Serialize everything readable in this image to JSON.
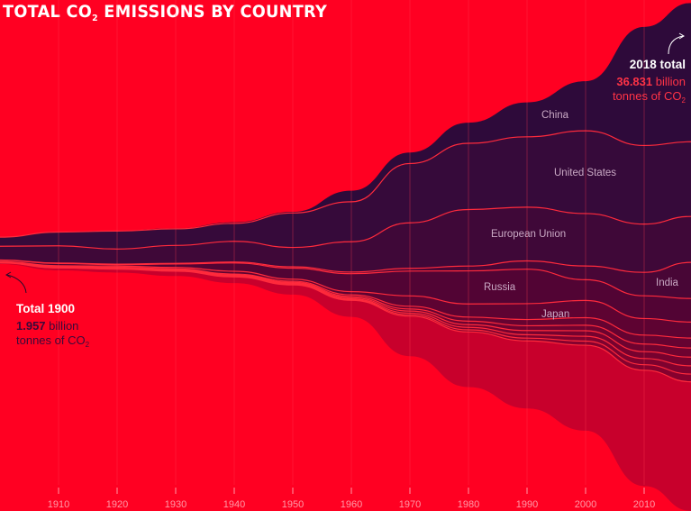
{
  "title": {
    "prefix": "TOTAL CO",
    "sub": "2",
    "suffix": " EMISSIONS BY COUNTRY"
  },
  "annotations": {
    "end": {
      "heading": "2018 total",
      "value": "36.831",
      "unit": "billion",
      "line2": "tonnes of CO",
      "sub": "2"
    },
    "start": {
      "heading": "Total 1900",
      "value": "1.957",
      "unit": "billion",
      "line2": "tonnes of CO",
      "sub": "2"
    }
  },
  "colors": {
    "background": "#ff0022",
    "divider": "#ff2a3c",
    "rest": "#c8002c",
    "china": "#2e0a3a",
    "label": "#c9a9c4",
    "tick": "#ff9aa8"
  },
  "chart_data": {
    "type": "area",
    "subtype": "streamgraph",
    "unit": "billion tonnes of CO2",
    "x": [
      1900,
      1910,
      1920,
      1930,
      1940,
      1950,
      1960,
      1970,
      1980,
      1990,
      2000,
      2010,
      2018
    ],
    "xticks": [
      1910,
      1920,
      1930,
      1940,
      1950,
      1960,
      1970,
      1980,
      1990,
      2000,
      2010
    ],
    "xlim": [
      1900,
      2018
    ],
    "grid": "vertical",
    "series": [
      {
        "name": "China",
        "color": "#2e0a3a",
        "values": [
          0.01,
          0.02,
          0.03,
          0.04,
          0.08,
          0.08,
          0.8,
          0.8,
          1.5,
          2.5,
          3.6,
          8.6,
          10.06
        ]
      },
      {
        "name": "United States",
        "color": "#360a3a",
        "values": [
          0.66,
          1.0,
          1.3,
          1.2,
          1.3,
          2.5,
          2.9,
          4.3,
          4.8,
          5.1,
          6.0,
          5.7,
          5.42
        ]
      },
      {
        "name": "European Union",
        "color": "#3f0838",
        "values": [
          1.0,
          1.25,
          1.1,
          1.3,
          1.5,
          1.4,
          2.2,
          3.3,
          4.1,
          3.9,
          3.8,
          3.5,
          3.33
        ]
      },
      {
        "name": "India",
        "color": "#480636",
        "values": [
          0.01,
          0.03,
          0.04,
          0.05,
          0.07,
          0.1,
          0.12,
          0.2,
          0.35,
          0.6,
          1.0,
          1.7,
          2.62
        ]
      },
      {
        "name": "Russia",
        "color": "#520434",
        "values": [
          0.1,
          0.16,
          0.1,
          0.25,
          0.6,
          0.8,
          1.3,
          1.8,
          2.4,
          2.5,
          1.5,
          1.65,
          1.71
        ]
      },
      {
        "name": "Japan",
        "color": "#5e0332",
        "values": [
          0.03,
          0.05,
          0.08,
          0.1,
          0.2,
          0.15,
          0.23,
          0.75,
          0.95,
          1.15,
          1.25,
          1.2,
          1.16
        ]
      },
      {
        "color": "#660331",
        "values": [
          0.02,
          0.03,
          0.04,
          0.05,
          0.06,
          0.08,
          0.12,
          0.2,
          0.3,
          0.45,
          0.55,
          0.65,
          0.72
        ]
      },
      {
        "color": "#6e0330",
        "values": [
          0.02,
          0.03,
          0.03,
          0.04,
          0.05,
          0.06,
          0.09,
          0.15,
          0.25,
          0.35,
          0.4,
          0.55,
          0.66
        ]
      },
      {
        "color": "#76022f",
        "values": [
          0.01,
          0.02,
          0.03,
          0.03,
          0.04,
          0.05,
          0.08,
          0.15,
          0.2,
          0.3,
          0.4,
          0.5,
          0.63
        ]
      },
      {
        "color": "#7e022f",
        "values": [
          0.01,
          0.02,
          0.02,
          0.03,
          0.03,
          0.04,
          0.06,
          0.12,
          0.18,
          0.25,
          0.35,
          0.45,
          0.6
        ]
      },
      {
        "color": "#86012e",
        "values": [
          0.01,
          0.01,
          0.02,
          0.02,
          0.03,
          0.04,
          0.05,
          0.1,
          0.15,
          0.2,
          0.3,
          0.4,
          0.56
        ]
      },
      {
        "color": "#c8002c",
        "values": [
          0.085,
          0.18,
          0.25,
          0.35,
          0.45,
          0.7,
          1.2,
          2.9,
          4.0,
          4.9,
          6.2,
          8.4,
          9.36
        ]
      }
    ]
  }
}
